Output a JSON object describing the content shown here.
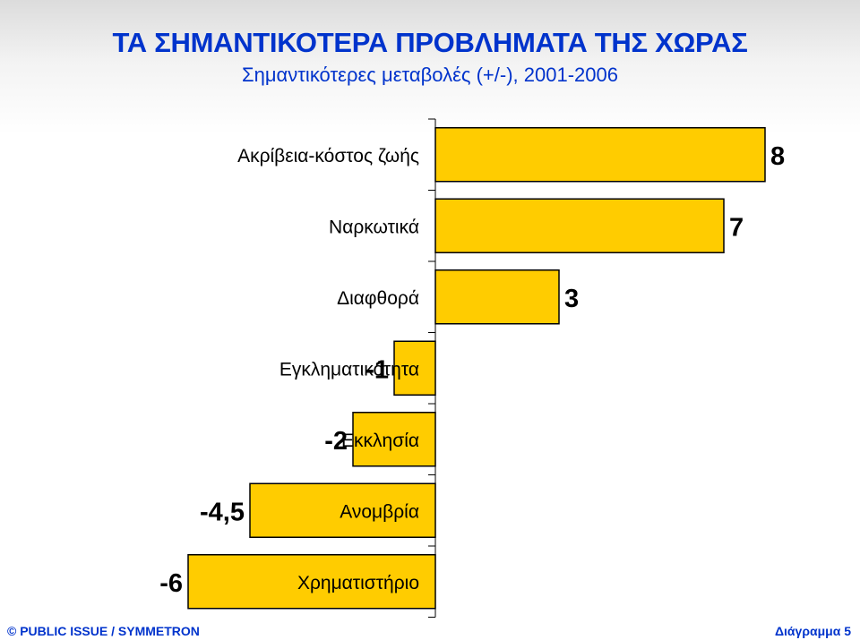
{
  "chart_data": {
    "type": "bar",
    "orientation": "horizontal",
    "title": "ΤΑ ΣΗΜΑΝΤΙΚΟΤΕΡΑ ΠΡΟΒΛΗΜΑΤΑ ΤΗΣ ΧΩΡΑΣ",
    "subtitle": "Σημαντικότερες μεταβολές (+/-), 2001-2006",
    "categories": [
      "Ακρίβεια-κόστος ζωής",
      "Ναρκωτικά",
      "Διαφθορά",
      "Εγκληματικότητα",
      "Εκκλησία",
      "Ανομβρία",
      "Χρηματιστήριο"
    ],
    "values": [
      8,
      7,
      3,
      -1,
      -2,
      -4.5,
      -6
    ],
    "value_labels": [
      "8",
      "7",
      "3",
      "-1",
      "-2",
      "-4,5",
      "-6"
    ],
    "bar_color": "#ffcc00",
    "bar_outline": "#000000",
    "grid": false,
    "legend": "none"
  },
  "footer": {
    "left": "© PUBLIC ISSUE / SYMMETRON",
    "right": "Διάγραμμα 5"
  },
  "colors": {
    "title": "#0033cc"
  }
}
